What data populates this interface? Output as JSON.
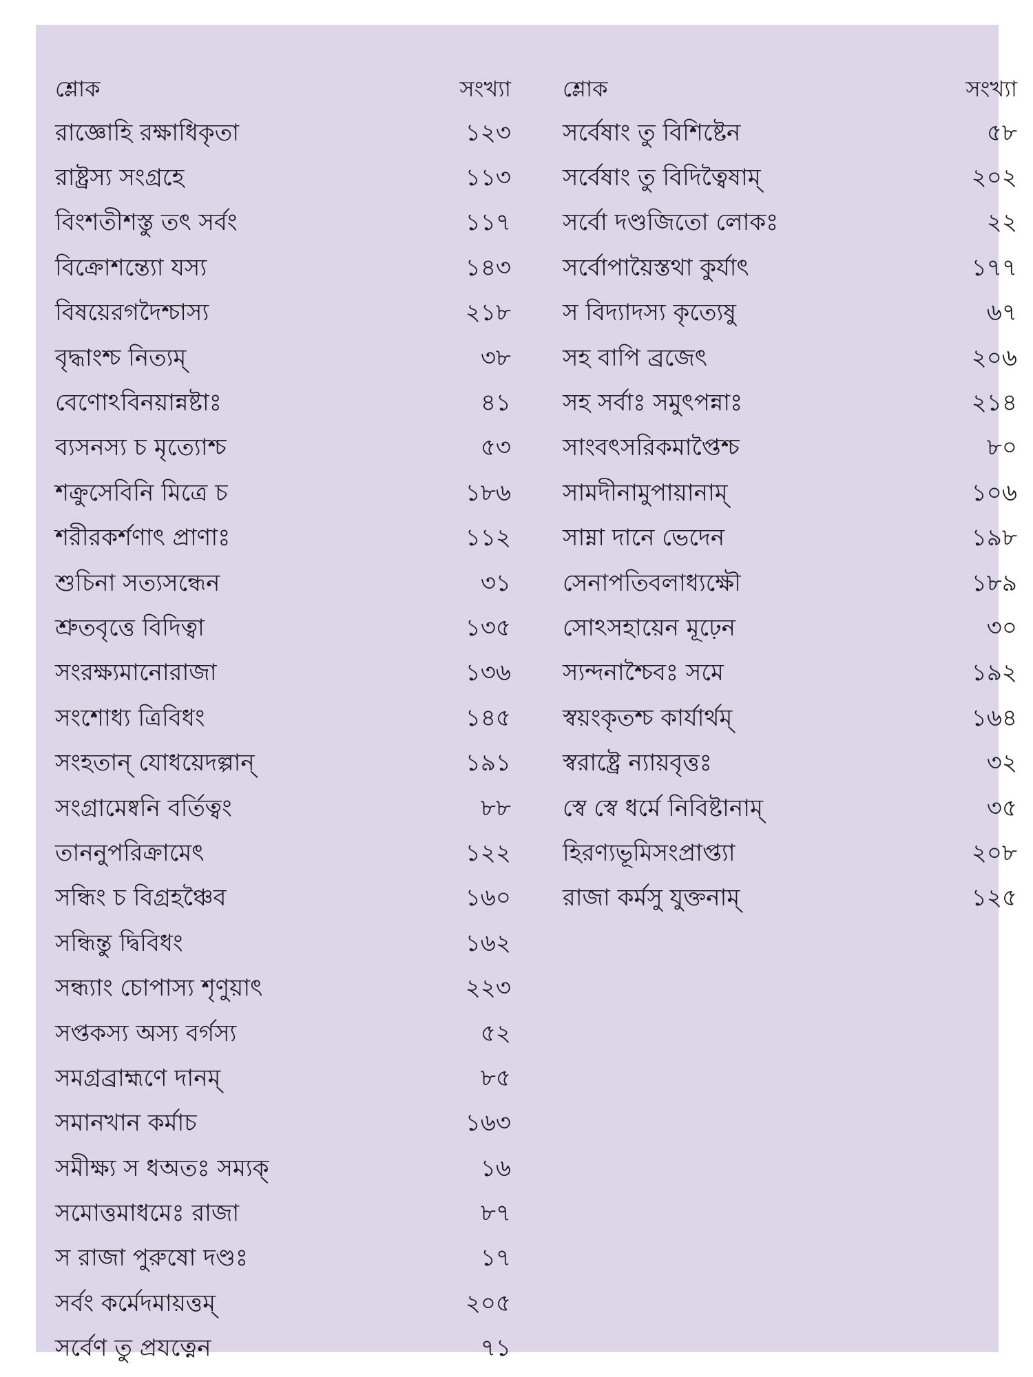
{
  "headers": {
    "shloka": "শ্লোক",
    "number": "সংখ্যা"
  },
  "left_column": [
    {
      "shloka": "রাজ্ঞোহি রক্ষাধিকৃতা",
      "number": "১২৩"
    },
    {
      "shloka": "রাষ্ট্রস্য সংগ্রহে",
      "number": "১১৩"
    },
    {
      "shloka": "বিংশতীশস্তু তৎ সর্বং",
      "number": "১১৭"
    },
    {
      "shloka": "বিক্রোশন্ত্যো যস্য",
      "number": "১৪৩"
    },
    {
      "shloka": "বিষয়েরগদৈশ্চাস্য",
      "number": "২১৮"
    },
    {
      "shloka": "বৃদ্ধাংশ্চ নিত্যম্",
      "number": "৩৮"
    },
    {
      "shloka": "বেণোঽবিনয়ান্নষ্টাঃ",
      "number": "৪১"
    },
    {
      "shloka": "ব্যসনস্য চ মৃত্যোশ্চ",
      "number": "৫৩"
    },
    {
      "shloka": "শক্রুসেবিনি মিত্রে চ",
      "number": "১৮৬"
    },
    {
      "shloka": "শরীরকর্শণাৎ প্রাণাঃ",
      "number": "১১২"
    },
    {
      "shloka": "শুচিনা সত্যসন্ধেন",
      "number": "৩১"
    },
    {
      "shloka": "শ্রুতবৃত্তে বিদিত্বা",
      "number": "১৩৫"
    },
    {
      "shloka": "সংরক্ষ্যমানোরাজা",
      "number": "১৩৬"
    },
    {
      "shloka": "সংশোধ্য ত্রিবিধং",
      "number": "১৪৫"
    },
    {
      "shloka": "সংহতান্ যোধয়েদল্পান্",
      "number": "১৯১"
    },
    {
      "shloka": "সংগ্রামেষ্বনি বর্তিত্বং",
      "number": "৮৮"
    },
    {
      "shloka": "তাননুপরিক্রামেৎ",
      "number": "১২২"
    },
    {
      "shloka": "সন্ধিং চ বিগ্রহঞ্চৈব",
      "number": "১৬০"
    },
    {
      "shloka": "সন্ধিন্তু দ্বিবিধং",
      "number": "১৬২"
    },
    {
      "shloka": "সন্ধ্যাং চোপাস্য শৃণুয়াৎ",
      "number": "২২৩"
    },
    {
      "shloka": "সপ্তকস্য অস্য বর্গস্য",
      "number": "৫২"
    },
    {
      "shloka": "সমগ্রব্রাহ্মণে দানম্",
      "number": "৮৫"
    },
    {
      "shloka": "সমানখান কর্মাচ",
      "number": "১৬৩"
    },
    {
      "shloka": "সমীক্ষ্য স ধঅতঃ সম্যক্",
      "number": "১৬"
    },
    {
      "shloka": "সমোত্তমাধমেঃ রাজা",
      "number": "৮৭"
    },
    {
      "shloka": "স রাজা পুরুষো দণ্ডঃ",
      "number": "১৭"
    },
    {
      "shloka": "সর্বং কর্মেদমায়ত্তম্",
      "number": "২০৫"
    },
    {
      "shloka": "সর্বেণ তু প্রযত্নেন",
      "number": "৭১"
    }
  ],
  "right_column": [
    {
      "shloka": "সর্বেষাং তু বিশিষ্টেন",
      "number": "৫৮"
    },
    {
      "shloka": "সর্বেষাং তু বিদিত্বৈষাম্",
      "number": "২০২"
    },
    {
      "shloka": "সর্বো দণ্ডজিতো লোকঃ",
      "number": "২২"
    },
    {
      "shloka": "সর্বোপায়ৈস্তথা কুর্যাৎ",
      "number": "১৭৭"
    },
    {
      "shloka": "স বিদ্যাদস্য কৃত্যেষু",
      "number": "৬৭"
    },
    {
      "shloka": "সহ বাপি ব্রজেৎ",
      "number": "২০৬"
    },
    {
      "shloka": "সহ সর্বাঃ সমুৎপন্নাঃ",
      "number": "২১৪"
    },
    {
      "shloka": "সাংবৎসরিকমাপ্তৈশ্চ",
      "number": "৮০"
    },
    {
      "shloka": "সামদীনামুপায়ানাম্",
      "number": "১০৬"
    },
    {
      "shloka": "সাম্না দানে ভেদেন",
      "number": "১৯৮"
    },
    {
      "shloka": "সেনাপতিবলাধ্যক্ষৌ",
      "number": "১৮৯"
    },
    {
      "shloka": "সোঽসহায়েন মূঢ়েন",
      "number": "৩০"
    },
    {
      "shloka": "স্যন্দনাশ্চৈবঃ সমে",
      "number": "১৯২"
    },
    {
      "shloka": "স্বয়ংকৃতশ্চ কার্যার্থম্",
      "number": "১৬৪"
    },
    {
      "shloka": "স্বরাষ্ট্রে ন্যায়বৃত্তঃ",
      "number": "৩২"
    },
    {
      "shloka": "স্বে স্বে ধর্মে নিবিষ্টানাম্",
      "number": "৩৫"
    },
    {
      "shloka": "হিরণ্যভূমিসংপ্রাপ্ত্যা",
      "number": "২০৮"
    },
    {
      "shloka": "রাজা কর্মসু যুক্তনাম্",
      "number": "১২৫"
    }
  ]
}
